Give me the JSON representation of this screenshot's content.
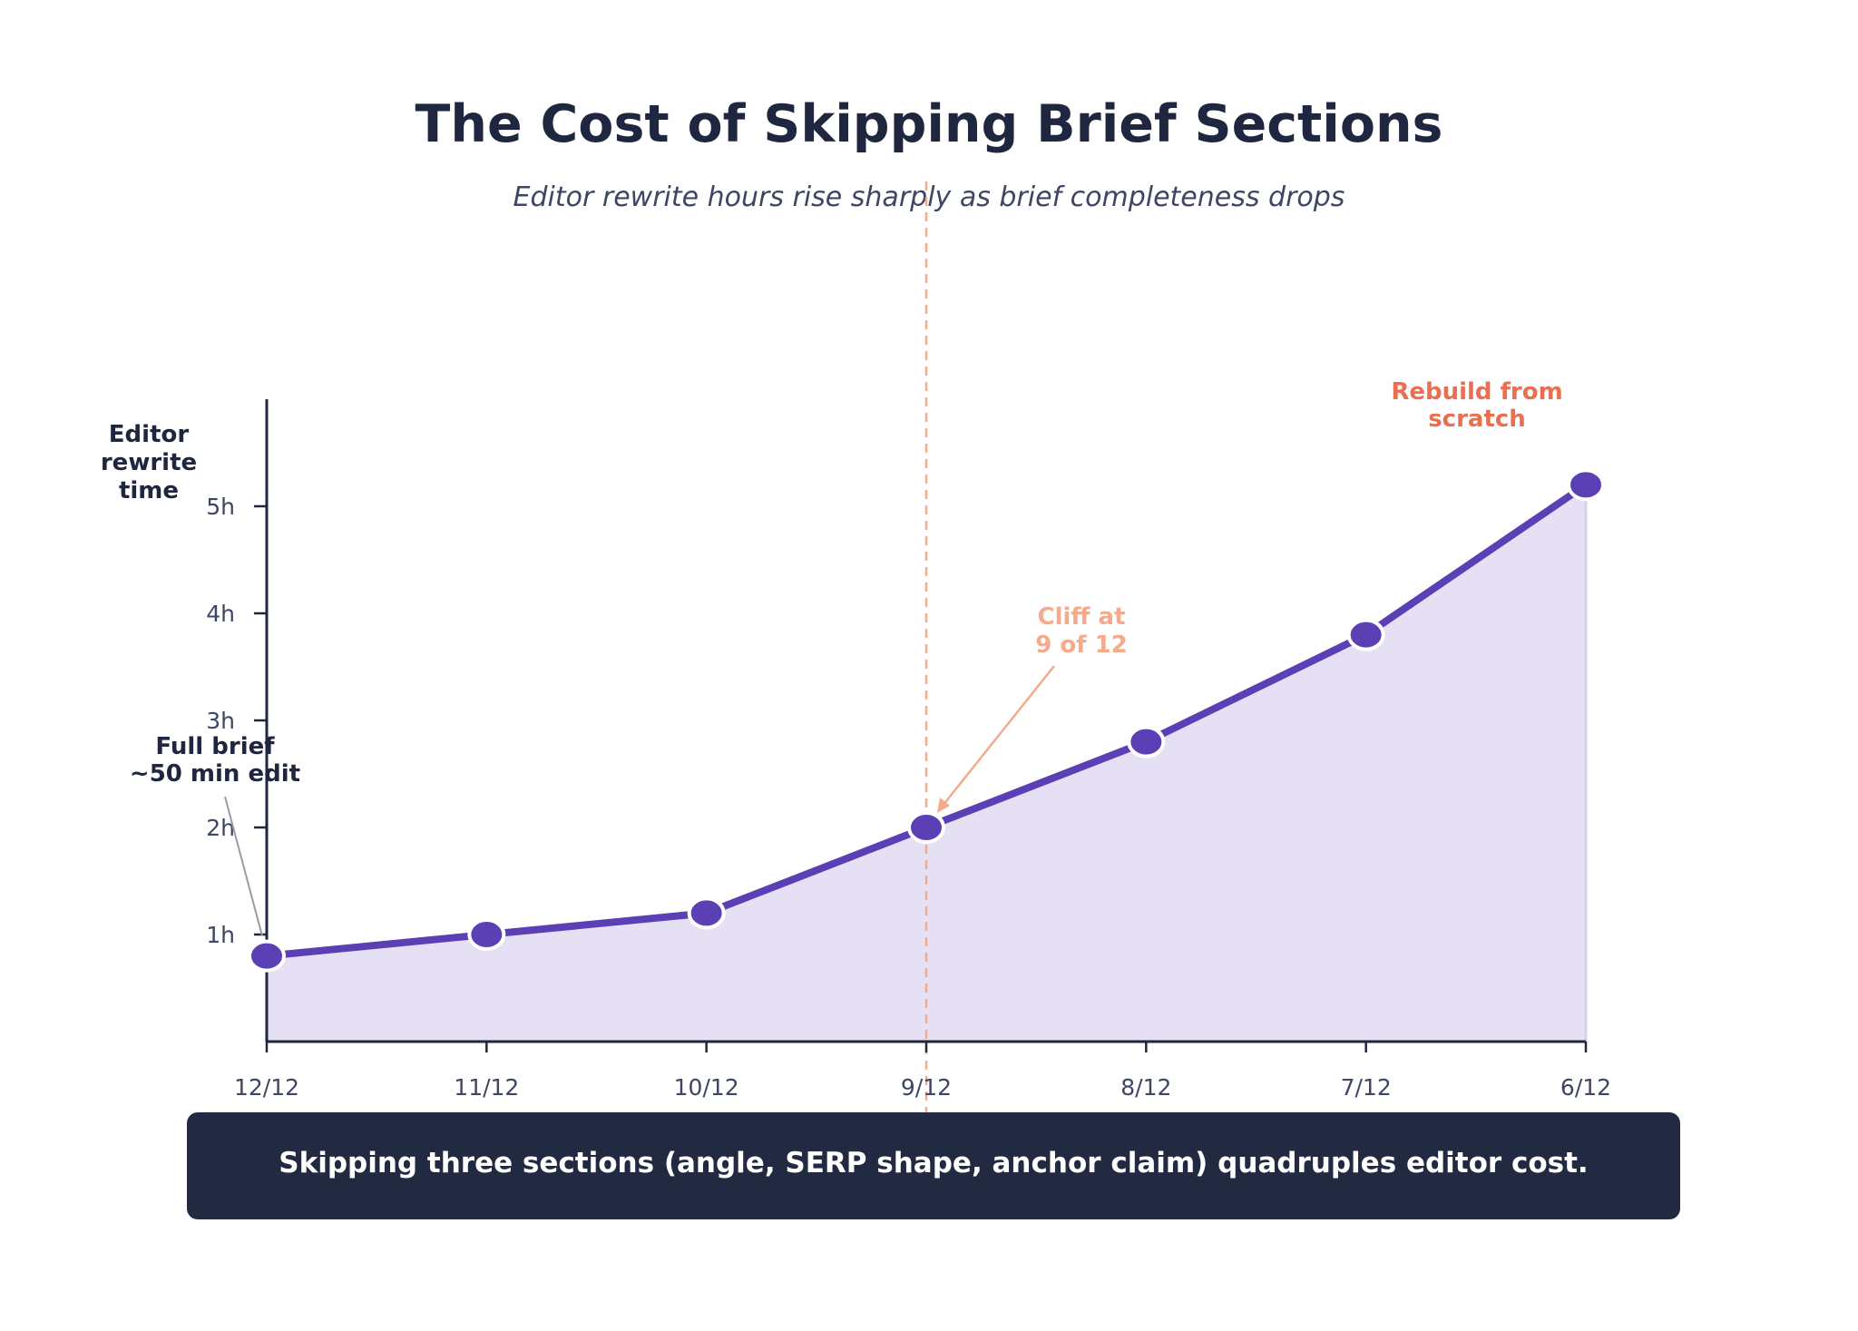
{
  "title": "The Cost of Skipping Brief Sections",
  "subtitle": "Editor rewrite hours rise sharply as brief completeness drops",
  "callout": "Skipping three sections (angle, SERP shape, anchor claim) quadruples editor cost.",
  "colors": {
    "line": "#5b3fb4",
    "area": "#e6e0f5",
    "cliff": "#f5aa8c",
    "rebuild": "#ea6f50",
    "text": "#1f2640",
    "callout_bg": "#222a42"
  },
  "chart_data": {
    "type": "area",
    "x": [
      "12/12",
      "11/12",
      "10/12",
      "9/12",
      "8/12",
      "7/12",
      "6/12"
    ],
    "series": [
      {
        "values": [
          0.8,
          1.0,
          1.2,
          2.0,
          2.8,
          3.8,
          5.2
        ]
      }
    ],
    "ylabel_lines": [
      "Editor",
      "rewrite",
      "time"
    ],
    "ylim": [
      0,
      6
    ],
    "yticks": [
      {
        "value": 1,
        "label": "1h"
      },
      {
        "value": 2,
        "label": "2h"
      },
      {
        "value": 3,
        "label": "3h"
      },
      {
        "value": 4,
        "label": "4h"
      },
      {
        "value": 5,
        "label": "5h"
      }
    ],
    "grid": false,
    "legend": "none",
    "vline": {
      "x": "9/12"
    },
    "annotations": [
      {
        "id": "full-brief",
        "lines": [
          "Full brief",
          "~50 min edit"
        ],
        "target": "12/12"
      },
      {
        "id": "cliff",
        "lines": [
          "Cliff at",
          "9 of 12"
        ],
        "target": "9/12"
      },
      {
        "id": "rebuild",
        "lines": [
          "Rebuild from",
          "scratch"
        ],
        "target": "6/12"
      }
    ]
  }
}
